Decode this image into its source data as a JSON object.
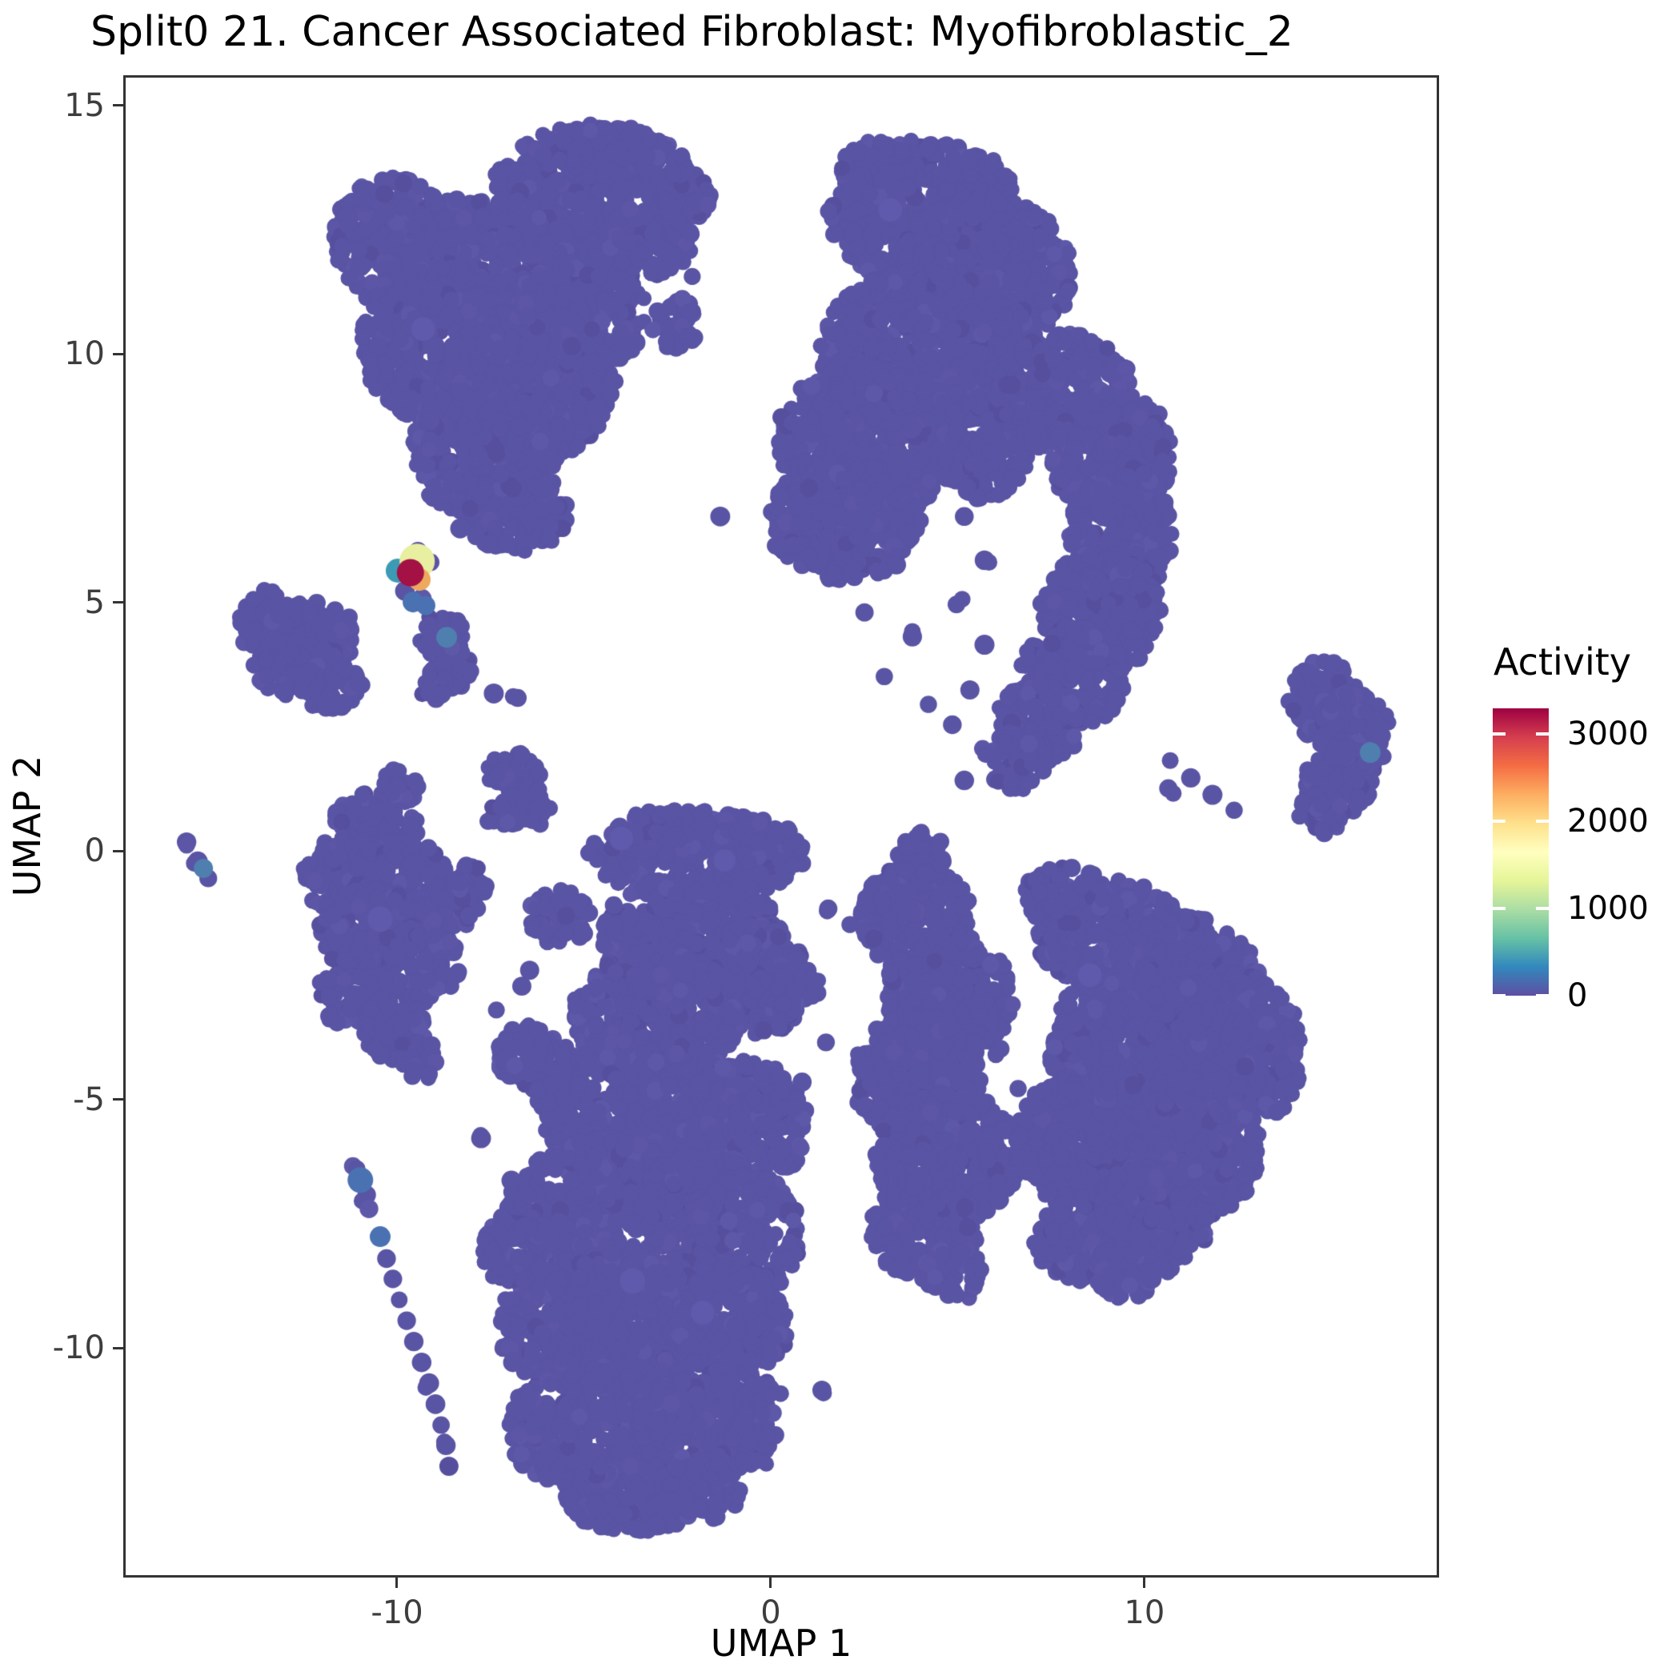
{
  "title": "Split0 21. Cancer Associated Fibroblast: Myofibroblastic_2",
  "chart_data": {
    "type": "scatter",
    "title": "Split0 21. Cancer Associated Fibroblast: Myofibroblastic_2",
    "xlabel": "UMAP 1",
    "ylabel": "UMAP 2",
    "xlim": [
      -17.26,
      17.82
    ],
    "ylim": [
      -14.57,
      15.56
    ],
    "x_ticks": [
      -10,
      0,
      10
    ],
    "y_ticks": [
      -10,
      -5,
      0,
      5,
      10,
      15
    ],
    "grid": false,
    "point_radius_px": 10.5,
    "colors": {
      "base": "#5a54a4",
      "variants": [
        "#5e58a9",
        "#564f9e",
        "#5d56a7"
      ],
      "faint": "#5f5aab",
      "blue": "#4a72b2",
      "steel": "#4e7fae",
      "teal": "#3d9ab5",
      "yellow": "#e9efa0",
      "orange": "#eda95e",
      "red": "#a31145"
    },
    "colorbar": {
      "label": "Activity",
      "ticks": [
        0,
        1000,
        2000,
        3000
      ],
      "vmax": 3290,
      "colormap": "Spectral reversed",
      "stops": [
        [
          0.0,
          "#5e4fa2"
        ],
        [
          0.1,
          "#3288bd"
        ],
        [
          0.2,
          "#66c2a5"
        ],
        [
          0.3,
          "#abdda4"
        ],
        [
          0.4,
          "#e6f598"
        ],
        [
          0.5,
          "#ffffbf"
        ],
        [
          0.6,
          "#fee08b"
        ],
        [
          0.7,
          "#fdae61"
        ],
        [
          0.8,
          "#f46d43"
        ],
        [
          0.9,
          "#d53e4f"
        ],
        [
          1.0,
          "#9e0142"
        ]
      ],
      "legend_position": "right"
    },
    "clusters": [
      {
        "name": "top-left",
        "blobs": [
          [
            -4.67,
            13.25,
            2.78,
            1.37
          ],
          [
            -7.77,
            11.8,
            2.57,
            1.45
          ],
          [
            -10.13,
            12.29,
            1.61,
            1.29
          ],
          [
            -8.63,
            10.19,
            2.36,
            1.61
          ],
          [
            -6.49,
            9.39,
            2.36,
            1.53
          ],
          [
            -7.56,
            8.02,
            2.03,
            1.37
          ],
          [
            -4.99,
            10.84,
            1.71,
            1.13
          ],
          [
            -6.81,
            6.81,
            1.39,
            0.81
          ],
          [
            -3.28,
            12.29,
            1.18,
            0.72
          ],
          [
            -2.42,
            13.09,
            0.86,
            0.56
          ],
          [
            -2.53,
            10.6,
            0.64,
            0.56
          ]
        ],
        "dots": [
          [
            -2.1,
            11.56
          ],
          [
            -1.35,
            6.73
          ],
          [
            -7.56,
            6.17
          ],
          [
            -8.31,
            6.49
          ]
        ]
      },
      {
        "name": "top-right",
        "blobs": [
          [
            4.0,
            12.85,
            2.46,
            1.45
          ],
          [
            2.83,
            13.65,
            0.96,
            0.64
          ],
          [
            5.4,
            13.33,
            1.07,
            0.72
          ],
          [
            5.72,
            11.64,
            2.36,
            1.53
          ],
          [
            4.0,
            10.03,
            2.68,
            1.69
          ],
          [
            2.61,
            8.26,
            2.46,
            1.53
          ],
          [
            1.97,
            6.65,
            2.03,
            1.21
          ],
          [
            5.72,
            8.1,
            1.18,
            1.05
          ],
          [
            7.86,
            9.23,
            1.82,
            1.21
          ],
          [
            9.14,
            7.94,
            1.61,
            1.37
          ],
          [
            9.36,
            6.41,
            1.39,
            1.37
          ],
          [
            8.82,
            4.8,
            1.61,
            1.21
          ],
          [
            8.07,
            3.51,
            1.39,
            1.05
          ],
          [
            7.11,
            2.54,
            1.18,
            0.81
          ],
          [
            6.57,
            1.82,
            0.81,
            0.61
          ]
        ],
        "dots": [
          [
            5.18,
            6.73
          ],
          [
            5.72,
            5.85
          ],
          [
            4.97,
            4.96
          ],
          [
            5.72,
            4.15
          ],
          [
            5.33,
            3.24
          ],
          [
            4.86,
            2.54
          ],
          [
            5.67,
            2.06
          ],
          [
            5.18,
            1.42
          ],
          [
            3.36,
            5.76
          ],
          [
            2.51,
            4.8
          ],
          [
            3.79,
            4.31
          ],
          [
            3.04,
            3.51
          ],
          [
            4.22,
            2.95
          ]
        ]
      },
      {
        "name": "far-right",
        "blobs": [
          [
            14.82,
            3.03,
            0.96,
            0.81
          ],
          [
            15.61,
            2.38,
            0.96,
            0.89
          ],
          [
            15.18,
            1.42,
            0.9,
            0.72
          ],
          [
            14.71,
            0.77,
            0.6,
            0.45
          ]
        ],
        "dots": []
      },
      {
        "name": "right-chain",
        "blobs": [],
        "dots": [
          [
            10.69,
            1.82
          ],
          [
            11.24,
            1.47
          ],
          [
            11.82,
            1.13
          ],
          [
            12.4,
            0.82
          ],
          [
            10.64,
            1.26
          ]
        ]
      },
      {
        "name": "left-small",
        "blobs": [
          [
            -13.23,
            4.52,
            1.03,
            0.61
          ],
          [
            -12.16,
            4.32,
            1.07,
            0.68
          ],
          [
            -12.66,
            3.72,
            1.18,
            0.64
          ],
          [
            -11.8,
            3.3,
            0.86,
            0.48
          ],
          [
            -13.51,
            4.91,
            0.54,
            0.35
          ]
        ],
        "dots": []
      },
      {
        "name": "speck-mid-upper",
        "blobs": [
          [
            -8.8,
            4.36,
            0.64,
            0.45
          ],
          [
            -8.59,
            3.72,
            0.6,
            0.48
          ],
          [
            -8.99,
            3.3,
            0.43,
            0.29
          ]
        ],
        "dots": [
          [
            -7.41,
            3.17
          ],
          [
            -6.77,
            3.08
          ]
        ]
      },
      {
        "name": "speck-mid-lower",
        "blobs": [
          [
            -6.87,
            1.53,
            0.77,
            0.48
          ],
          [
            -6.55,
            0.9,
            0.64,
            0.45
          ],
          [
            -7.3,
            0.66,
            0.39,
            0.26
          ]
        ],
        "dots": []
      },
      {
        "name": "far-left-chain",
        "blobs": [],
        "dots": [
          [
            -15.63,
            0.18
          ],
          [
            -15.33,
            -0.21
          ],
          [
            -15.05,
            -0.55
          ]
        ]
      },
      {
        "name": "mid-left",
        "blobs": [
          [
            -10.56,
            0.5,
            1.18,
            0.72
          ],
          [
            -11.37,
            -0.47,
            1.18,
            0.81
          ],
          [
            -9.87,
            -0.6,
            1.28,
            0.81
          ],
          [
            -10.73,
            -1.59,
            1.39,
            0.89
          ],
          [
            -9.44,
            -2.29,
            1.11,
            0.81
          ],
          [
            -11.16,
            -2.88,
            0.96,
            0.72
          ],
          [
            -10.09,
            -3.57,
            0.86,
            0.64
          ],
          [
            -9.44,
            -4.17,
            0.64,
            0.45
          ],
          [
            -8.59,
            -1.11,
            0.75,
            0.48
          ],
          [
            -8.09,
            -0.63,
            0.54,
            0.35
          ],
          [
            -9.96,
            1.26,
            0.54,
            0.4
          ]
        ],
        "dots": [
          [
            -9.53,
            -4.33
          ]
        ]
      },
      {
        "name": "tail",
        "blobs": [],
        "dots": [
          [
            -11.18,
            -6.34
          ],
          [
            -10.81,
            -6.92
          ],
          [
            -10.75,
            -7.2
          ],
          [
            -10.28,
            -8.2
          ],
          [
            -10.11,
            -8.61
          ],
          [
            -9.94,
            -9.03
          ],
          [
            -9.74,
            -9.45
          ],
          [
            -9.55,
            -9.87
          ],
          [
            -9.34,
            -10.29
          ],
          [
            -9.14,
            -10.71
          ],
          [
            -8.97,
            -11.13
          ],
          [
            -8.82,
            -11.55
          ],
          [
            -8.69,
            -11.96
          ],
          [
            -8.61,
            -12.38
          ]
        ]
      },
      {
        "name": "bottom-center",
        "blobs": [
          [
            -1.99,
            -0.08,
            2.89,
            0.89
          ],
          [
            -2.85,
            0.37,
            1.28,
            0.48
          ],
          [
            -0.28,
            0.02,
            1.18,
            0.56
          ],
          [
            -2.1,
            -1.64,
            2.46,
            1.13
          ],
          [
            -0.49,
            -2.61,
            1.5,
            1.13
          ],
          [
            -3.06,
            -3.25,
            2.25,
            1.29
          ],
          [
            -3.49,
            -5.19,
            2.78,
            1.45
          ],
          [
            -0.71,
            -5.51,
            1.71,
            1.29
          ],
          [
            -4.03,
            -7.36,
            3.1,
            1.61
          ],
          [
            -0.6,
            -7.76,
            1.39,
            1.29
          ],
          [
            -6.92,
            -8.0,
            0.86,
            0.72
          ],
          [
            -4.35,
            -9.53,
            3.0,
            1.45
          ],
          [
            -1.03,
            -9.53,
            1.5,
            1.13
          ],
          [
            -4.67,
            -11.63,
            2.46,
            1.21
          ],
          [
            -1.88,
            -11.55,
            1.71,
            0.97
          ],
          [
            -3.7,
            -13.0,
            1.82,
            0.72
          ],
          [
            -1.99,
            -12.87,
            1.18,
            0.61
          ],
          [
            -0.75,
            -12.22,
            0.69,
            0.48
          ],
          [
            -0.32,
            -11.58,
            0.6,
            0.45
          ],
          [
            -0.21,
            -11.01,
            0.51,
            0.39
          ],
          [
            -6.38,
            -4.17,
            0.96,
            0.68
          ],
          [
            -5.63,
            -1.32,
            0.86,
            0.56
          ],
          [
            0.69,
            -2.77,
            0.64,
            0.48
          ]
        ],
        "dots": [
          [
            -7.34,
            -3.2
          ],
          [
            -6.66,
            -2.72
          ],
          [
            -7.75,
            -5.78
          ],
          [
            -7.43,
            -8.03
          ],
          [
            -6.9,
            -10.29
          ],
          [
            0.84,
            -4.65
          ],
          [
            1.48,
            -3.85
          ],
          [
            -6.45,
            -2.4
          ],
          [
            -6.94,
            -6.63
          ]
        ]
      },
      {
        "name": "bottom-right",
        "blobs": [
          [
            3.9,
            -1.32,
            1.5,
            1.13
          ],
          [
            4.75,
            -2.93,
            1.71,
            1.29
          ],
          [
            3.9,
            -4.54,
            1.71,
            1.29
          ],
          [
            4.75,
            -6.15,
            1.93,
            1.29
          ],
          [
            4.11,
            -7.6,
            1.5,
            0.97
          ],
          [
            4.9,
            -8.52,
            0.86,
            0.56
          ],
          [
            4.0,
            -0.08,
            0.69,
            0.48
          ],
          [
            9.14,
            -1.72,
            2.03,
            1.13
          ],
          [
            10.96,
            -2.61,
            2.14,
            1.29
          ],
          [
            12.36,
            -3.9,
            1.82,
            1.45
          ],
          [
            9.89,
            -3.9,
            2.46,
            1.61
          ],
          [
            8.71,
            -5.83,
            2.14,
            1.45
          ],
          [
            11.18,
            -5.99,
            1.93,
            1.45
          ],
          [
            10.0,
            -7.44,
            1.71,
            1.13
          ],
          [
            8.29,
            -7.76,
            1.28,
            0.89
          ],
          [
            9.46,
            -8.45,
            0.86,
            0.61
          ],
          [
            13.1,
            -4.3,
            1.07,
            1.13
          ],
          [
            7.86,
            -0.92,
            1.07,
            0.64
          ]
        ],
        "dots": [
          [
            6.15,
            -3.98
          ],
          [
            6.62,
            -4.78
          ],
          [
            6.25,
            -5.59
          ],
          [
            6.79,
            -6.39
          ],
          [
            6.1,
            -7.04
          ],
          [
            6.47,
            -3.09
          ],
          [
            5.89,
            -2.29
          ],
          [
            1.54,
            -1.16
          ],
          [
            2.12,
            -1.48
          ],
          [
            2.76,
            -1.76
          ],
          [
            1.37,
            -10.85
          ]
        ]
      },
      {
        "name": "hotspot-speck",
        "blobs": [],
        "dots": [
          [
            -9.44,
            6.04
          ],
          [
            -9.1,
            5.81
          ],
          [
            -9.79,
            5.23
          ],
          [
            -9.34,
            5.07
          ]
        ]
      }
    ],
    "accent_points": [
      {
        "x": -9.57,
        "y": 5.01,
        "color": "blue",
        "r": 13,
        "activity": 500
      },
      {
        "x": -9.23,
        "y": 4.94,
        "color": "blue",
        "r": 12,
        "activity": 500
      },
      {
        "x": -8.67,
        "y": 4.3,
        "color": "steel",
        "r": 13,
        "activity": 400
      },
      {
        "x": 16.04,
        "y": 1.98,
        "color": "steel",
        "r": 13,
        "activity": 400
      },
      {
        "x": -15.18,
        "y": -0.35,
        "color": "steel",
        "r": 12,
        "activity": 400
      },
      {
        "x": -10.98,
        "y": -6.62,
        "color": "blue",
        "r": 16,
        "activity": 500
      },
      {
        "x": -10.45,
        "y": -7.76,
        "color": "blue",
        "r": 13,
        "activity": 500
      },
      {
        "x": -10.45,
        "y": -1.37,
        "color": "faint",
        "r": 16,
        "activity": 150
      },
      {
        "x": -3.7,
        "y": -8.65,
        "color": "faint",
        "r": 16,
        "activity": 150
      },
      {
        "x": -1.82,
        "y": -9.29,
        "color": "faint",
        "r": 15,
        "activity": 150
      },
      {
        "x": 8.54,
        "y": -2.5,
        "color": "faint",
        "r": 15,
        "activity": 150
      },
      {
        "x": 3.2,
        "y": 12.9,
        "color": "faint",
        "r": 15,
        "activity": 150
      },
      {
        "x": -9.3,
        "y": 10.5,
        "color": "faint",
        "r": 15,
        "activity": 150
      },
      {
        "x": -1.24,
        "y": -0.19,
        "color": "faint",
        "r": 14,
        "activity": 150
      },
      {
        "x": -4.0,
        "y": 0.25,
        "color": "faint",
        "r": 15,
        "activity": 150
      }
    ],
    "highlight_stack": [
      {
        "x": -9.98,
        "y": 5.64,
        "r": 15,
        "color": "teal",
        "activity": 900
      },
      {
        "x": -9.46,
        "y": 5.83,
        "r": 22,
        "color": "yellow",
        "activity": 1800
      },
      {
        "x": -9.4,
        "y": 5.46,
        "r": 14,
        "color": "orange",
        "activity": 2300
      },
      {
        "x": -9.64,
        "y": 5.6,
        "r": 17,
        "color": "red",
        "activity": 3200
      }
    ]
  }
}
